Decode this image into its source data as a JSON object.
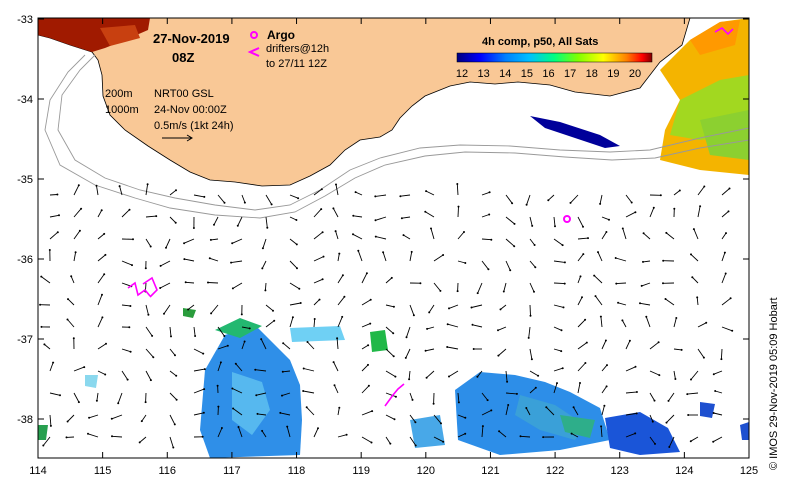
{
  "map": {
    "lon_ticks": [
      "114",
      "115",
      "116",
      "117",
      "118",
      "119",
      "120",
      "121",
      "122",
      "123",
      "124",
      "125"
    ],
    "lat_ticks": [
      "-33",
      "-34",
      "-35",
      "-36",
      "-37",
      "-38"
    ]
  },
  "header": {
    "date": "27-Nov-2019",
    "time": "08Z"
  },
  "legend": {
    "argo_label": "Argo",
    "drifters_label": "drifters@12h",
    "drifters_sub": "to 27/11 12Z",
    "argo_color": "#ff00ff",
    "drifter_color": "#ff00ff"
  },
  "contours": {
    "c200": "200m",
    "c1000": "1000m"
  },
  "product": {
    "name": "NRT00 GSL",
    "date": "24-Nov 00:00Z",
    "vector_scale": "0.5m/s (1kt 24h)"
  },
  "colorbar": {
    "title": "4h comp, p50, All Sats",
    "ticks": [
      "12",
      "13",
      "14",
      "15",
      "16",
      "17",
      "18",
      "19",
      "20"
    ],
    "stops": [
      "#00007f",
      "#0000ff",
      "#0080ff",
      "#00c0ff",
      "#00ff80",
      "#80ff00",
      "#ffff00",
      "#ff8000",
      "#ff0000",
      "#7f0000"
    ]
  },
  "credit": "© IMOS 29-Nov-2019 05:09 Hobart",
  "land_color": "#f9c896"
}
